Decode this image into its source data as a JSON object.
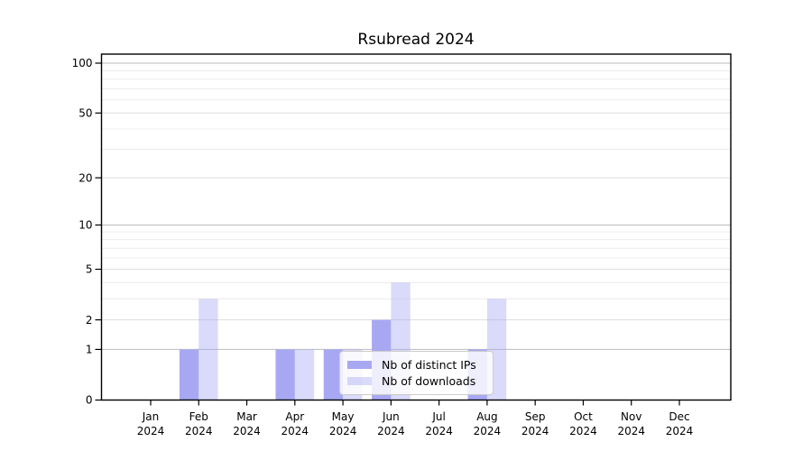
{
  "chart_data": {
    "type": "bar",
    "title": "Rsubread 2024",
    "categories": [
      "Jan 2024",
      "Feb 2024",
      "Mar 2024",
      "Apr 2024",
      "May 2024",
      "Jun 2024",
      "Jul 2024",
      "Aug 2024",
      "Sep 2024",
      "Oct 2024",
      "Nov 2024",
      "Dec 2024"
    ],
    "x_tick_months": [
      "Jan",
      "Feb",
      "Mar",
      "Apr",
      "May",
      "Jun",
      "Jul",
      "Aug",
      "Sep",
      "Oct",
      "Nov",
      "Dec"
    ],
    "x_tick_year": "2024",
    "series": [
      {
        "name": "Nb of distinct IPs",
        "color": "#a8a8f2",
        "opacity": 1.0,
        "values": [
          0,
          1,
          0,
          1,
          1,
          2,
          0,
          1,
          0,
          0,
          0,
          0
        ]
      },
      {
        "name": "Nb of downloads",
        "color": "#a8a8f2",
        "opacity": 0.42,
        "values": [
          0,
          3,
          0,
          1,
          1,
          4,
          0,
          3,
          0,
          0,
          0,
          0
        ]
      }
    ],
    "y_axis": {
      "scale": "log1p",
      "tick_values": [
        0,
        1,
        2,
        5,
        10,
        20,
        50,
        100
      ],
      "tick_labels": [
        "0",
        "1",
        "2",
        "5",
        "10",
        "20",
        "50",
        "100"
      ],
      "decade_gridlines": [
        1,
        10,
        100
      ],
      "labeled_gridlines": [
        2,
        5,
        20,
        50
      ],
      "minor_gridlines": [
        3,
        4,
        6,
        7,
        8,
        9,
        30,
        40,
        60,
        70,
        80,
        90
      ],
      "max": 100
    },
    "legend": {
      "position": "lower center"
    },
    "grid": true
  },
  "colors": {
    "background": "#ffffff",
    "axis": "#000000",
    "text": "#000000",
    "grid_decade": "#bbbbbb",
    "grid_labeled": "#dddddd",
    "grid_minor": "#ececec",
    "legend_border": "#cccccc"
  }
}
